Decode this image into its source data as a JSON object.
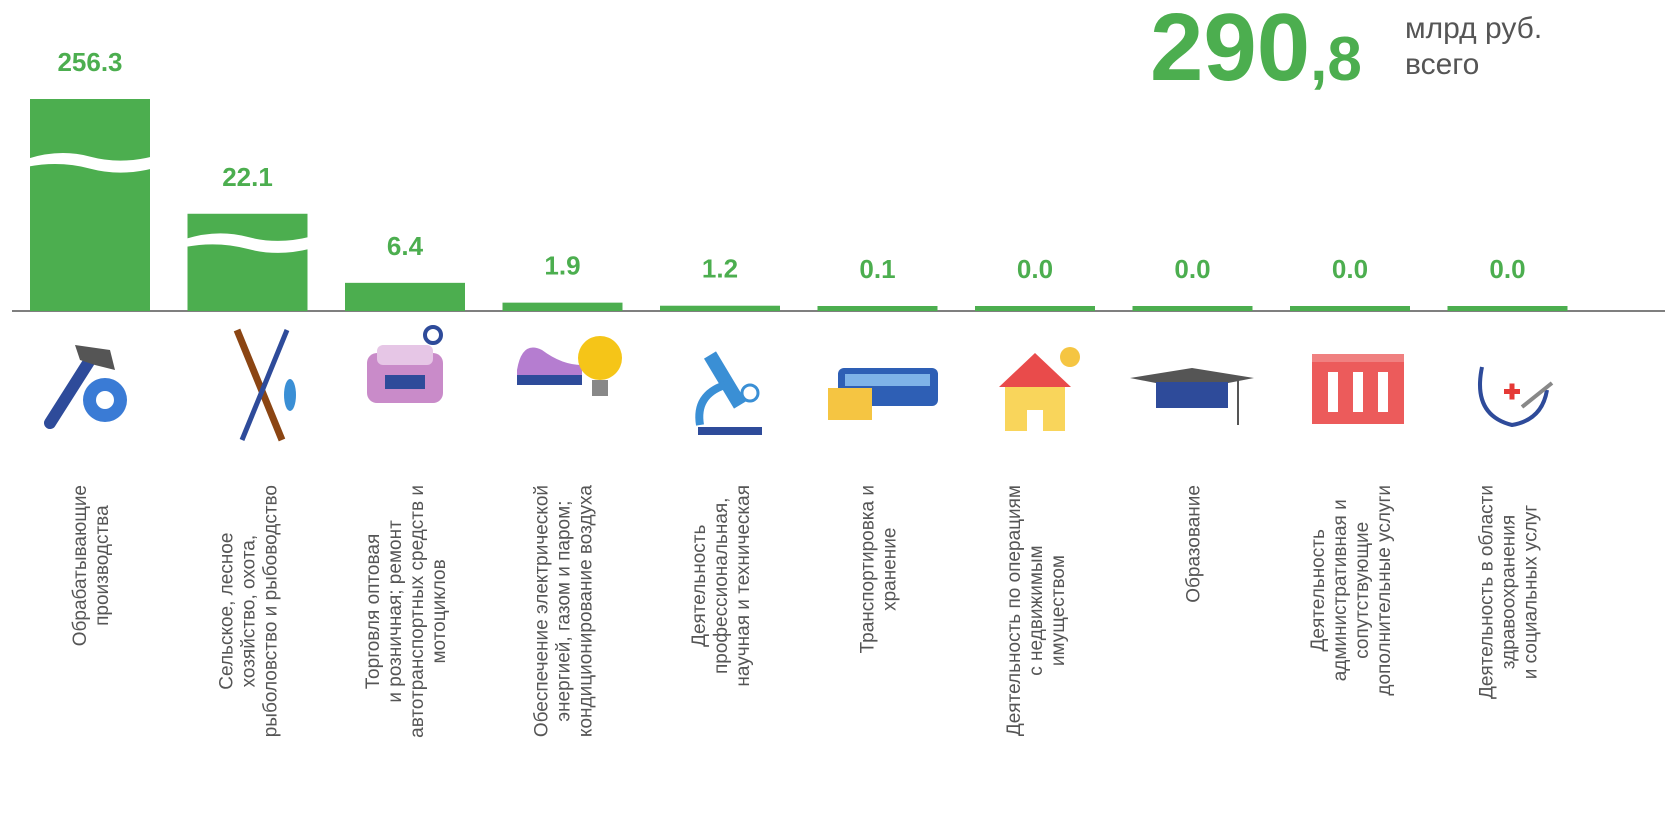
{
  "chart_data": {
    "type": "bar",
    "total": "290,8",
    "unit": "млрд руб.",
    "total_note": "всего",
    "categories": [
      [
        "Обрабатывающие",
        "производства"
      ],
      [
        "Сельское, лесное",
        "хозяйство, охота,",
        "рыболовство и рыбоводство"
      ],
      [
        "Торговля оптовая",
        "и розничная; ремонт",
        "автотранспортных средств и",
        "мотоциклов"
      ],
      [
        "Обеспечение электрической",
        "энергией, газом и паром;",
        "кондиционирование воздуха"
      ],
      [
        "Деятельность",
        "профессиональная,",
        "научная и техническая"
      ],
      [
        "Транспортировка и",
        "хранение"
      ],
      [
        "Деятельность по операциям",
        "с недвижимым",
        "имуществом"
      ],
      [
        "Образование"
      ],
      [
        "Деятельность",
        "административная и",
        "сопутствующие",
        "дополнительные услуги"
      ],
      [
        "Деятельность в области",
        "здравоохранения",
        "и социальных услуг"
      ]
    ],
    "values": [
      256.3,
      22.1,
      6.4,
      1.9,
      1.2,
      0.1,
      0.0,
      0.0,
      0.0,
      0.0
    ],
    "value_labels": [
      "256.3",
      "22.1",
      "6.4",
      "1.9",
      "1.2",
      "0.1",
      "0.0",
      "0.0",
      "0.0",
      "0.0"
    ],
    "color": "#4cae4f",
    "ylim": [
      0,
      50
    ],
    "broken_axis": true
  }
}
